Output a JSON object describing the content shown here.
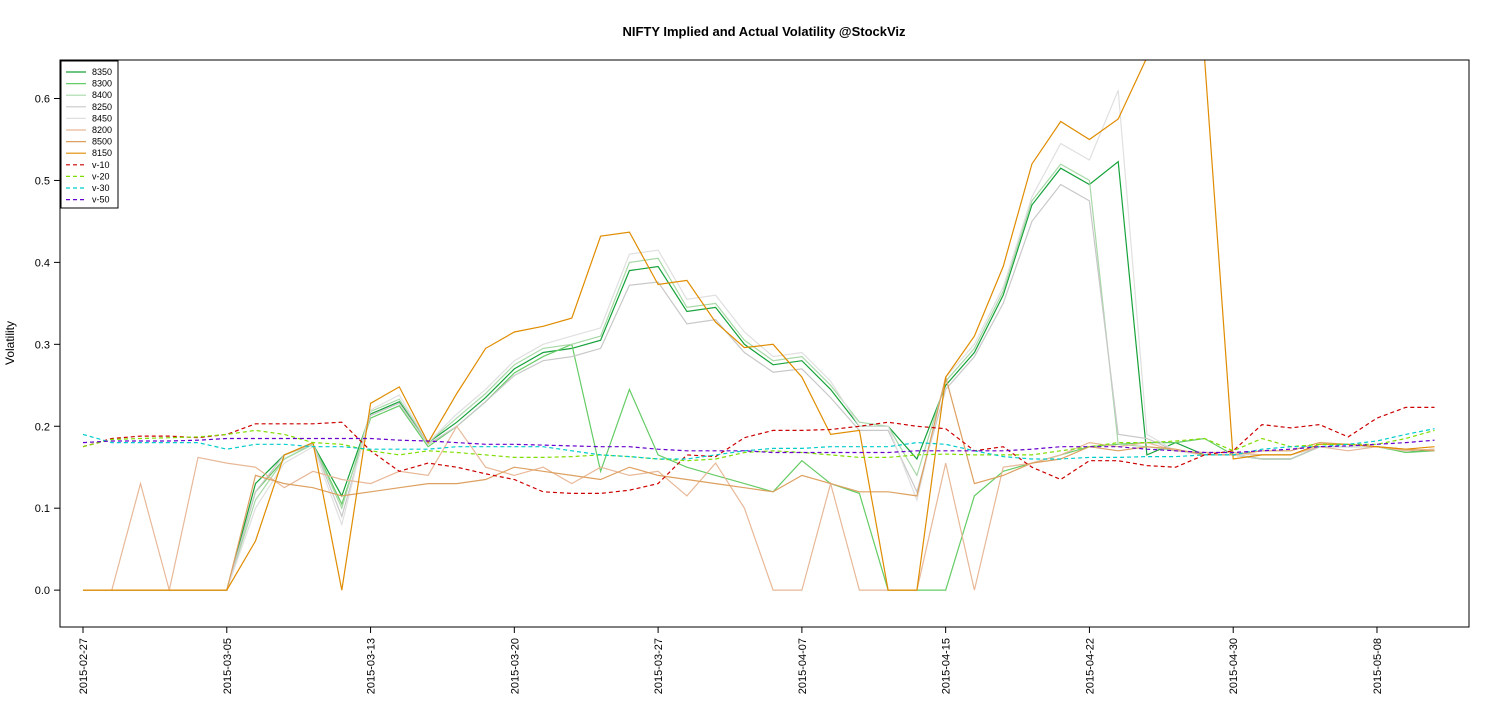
{
  "chart_data": {
    "type": "line",
    "title": "NIFTY Implied and Actual Volatility @StockViz",
    "xlabel": "",
    "ylabel": "Volatility",
    "ylim": [
      -0.045,
      0.647
    ],
    "yticks": [
      0.0,
      0.1,
      0.2,
      0.3,
      0.4,
      0.5,
      0.6
    ],
    "ytick_labels": [
      "0.0",
      "0.1",
      "0.2",
      "0.3",
      "0.4",
      "0.5",
      "0.6"
    ],
    "xlim": [
      -0.8,
      48.2
    ],
    "xticks": [
      0,
      5,
      10,
      15,
      20,
      25,
      30,
      35,
      40,
      45
    ],
    "xtick_labels": [
      "2015-02-27",
      "2015-03-05",
      "2015-03-13",
      "2015-03-20",
      "2015-03-27",
      "2015-04-07",
      "2015-04-15",
      "2015-04-22",
      "2015-04-30",
      "2015-05-08"
    ],
    "grid": false,
    "legend_position": "top-left",
    "x": [
      0,
      1,
      2,
      3,
      4,
      5,
      6,
      7,
      8,
      9,
      10,
      11,
      12,
      13,
      14,
      15,
      16,
      17,
      18,
      19,
      20,
      21,
      22,
      23,
      24,
      25,
      26,
      27,
      28,
      29,
      30,
      31,
      32,
      33,
      34,
      35,
      36,
      37,
      38,
      39,
      40,
      41,
      42,
      43,
      44,
      45,
      46,
      47
    ],
    "series": [
      {
        "name": "8350",
        "color": "#16a23a",
        "dash": "",
        "values": [
          0,
          0,
          0,
          0,
          0,
          0,
          0.13,
          0.165,
          0.178,
          0.115,
          0.215,
          0.23,
          0.18,
          0.205,
          0.235,
          0.27,
          0.29,
          0.295,
          0.305,
          0.39,
          0.395,
          0.34,
          0.345,
          0.3,
          0.275,
          0.28,
          0.245,
          0.2,
          0.2,
          0.16,
          0.25,
          0.29,
          0.36,
          0.47,
          0.515,
          0.495,
          0.523,
          0.165,
          0.18,
          0.165,
          0.165,
          0.16,
          0.16,
          0.175,
          0.175,
          0.175,
          0.17,
          0.17
        ]
      },
      {
        "name": "8300",
        "color": "#66cc66",
        "dash": "",
        "values": [
          0,
          0,
          0,
          0,
          0,
          0,
          0.12,
          0.16,
          0.178,
          0.105,
          0.21,
          0.225,
          0.175,
          0.2,
          0.23,
          0.265,
          0.285,
          0.3,
          0.145,
          0.245,
          0.165,
          0.15,
          0.14,
          0.13,
          0.12,
          0.158,
          0.13,
          0.118,
          0,
          0,
          0,
          0.115,
          0.145,
          0.155,
          0.165,
          0.175,
          0.178,
          0.18,
          0.18,
          0.185,
          0.165,
          0.16,
          0.16,
          0.175,
          0.175,
          0.175,
          0.168,
          0.17
        ]
      },
      {
        "name": "8400",
        "color": "#a8d8a8",
        "dash": "",
        "values": [
          0,
          0,
          0,
          0,
          0,
          0,
          0.11,
          0.16,
          0.178,
          0.1,
          0.218,
          0.233,
          0.18,
          0.21,
          0.24,
          0.275,
          0.295,
          0.3,
          0.31,
          0.4,
          0.405,
          0.345,
          0.35,
          0.305,
          0.28,
          0.285,
          0.25,
          0.205,
          0.2,
          0.14,
          0.255,
          0.295,
          0.365,
          0.475,
          0.52,
          0.5,
          0.178,
          0.175,
          0.17,
          0.165,
          0.165,
          0.165,
          0.165,
          0.175,
          0.175,
          0.175,
          0.17,
          0.172
        ]
      },
      {
        "name": "8250",
        "color": "#c8c8c8",
        "dash": "",
        "values": [
          0,
          0,
          0,
          0,
          0,
          0,
          0.12,
          0.165,
          0.178,
          0.09,
          0.213,
          0.228,
          0.178,
          0.2,
          0.23,
          0.262,
          0.28,
          0.285,
          0.295,
          0.372,
          0.376,
          0.325,
          0.33,
          0.29,
          0.266,
          0.27,
          0.235,
          0.195,
          0.195,
          0.12,
          0.245,
          0.285,
          0.35,
          0.45,
          0.495,
          0.475,
          0.19,
          0.185,
          0.17,
          0.165,
          0.165,
          0.16,
          0.16,
          0.175,
          0.175,
          0.175,
          0.17,
          0.172
        ]
      },
      {
        "name": "8450",
        "color": "#e0e0e0",
        "dash": "",
        "values": [
          0,
          0,
          0,
          0,
          0,
          0,
          0.1,
          0.155,
          0.175,
          0.08,
          0.22,
          0.238,
          0.18,
          0.215,
          0.245,
          0.28,
          0.3,
          0.31,
          0.32,
          0.41,
          0.415,
          0.355,
          0.36,
          0.315,
          0.285,
          0.29,
          0.255,
          0.2,
          0.2,
          0.11,
          0.26,
          0.3,
          0.37,
          0.48,
          0.545,
          0.525,
          0.61,
          0.19,
          0.17,
          0.165,
          0.165,
          0.165,
          0.165,
          0.175,
          0.175,
          0.175,
          0.17,
          0.172
        ]
      },
      {
        "name": "8200",
        "color": "#e8b898",
        "dash": "",
        "values": [
          0,
          0,
          0.13,
          0,
          0.162,
          0.155,
          0.15,
          0.125,
          0.145,
          0.135,
          0.13,
          0.145,
          0.14,
          0.2,
          0.15,
          0.14,
          0.15,
          0.13,
          0.15,
          0.14,
          0.145,
          0.115,
          0.155,
          0.1,
          0,
          0,
          0.13,
          0,
          0,
          0,
          0.155,
          0,
          0.15,
          0.155,
          0.165,
          0.18,
          0.175,
          0.18,
          0.17,
          0.168,
          0.168,
          0.165,
          0.165,
          0.175,
          0.17,
          0.175,
          0.17,
          0.172
        ]
      },
      {
        "name": "8500",
        "color": "#dda060",
        "dash": "",
        "values": [
          0,
          0,
          0,
          0,
          0,
          0,
          0.14,
          0.13,
          0.125,
          0.115,
          0.12,
          0.125,
          0.13,
          0.13,
          0.135,
          0.15,
          0.145,
          0.14,
          0.135,
          0.15,
          0.14,
          0.135,
          0.13,
          0.125,
          0.12,
          0.14,
          0.13,
          0.12,
          0.12,
          0.115,
          0.26,
          0.13,
          0.14,
          0.155,
          0.16,
          0.175,
          0.17,
          0.175,
          0.172,
          0.165,
          0.165,
          0.17,
          0.17,
          0.18,
          0.178,
          0.175,
          0.172,
          0.17
        ]
      },
      {
        "name": "8150",
        "color": "#e08c00",
        "dash": "",
        "values": [
          0,
          0,
          0,
          0,
          0,
          0,
          0.06,
          0.165,
          0.18,
          0,
          0.228,
          0.248,
          0.18,
          0.24,
          0.295,
          0.315,
          0.322,
          0.332,
          0.432,
          0.437,
          0.373,
          0.378,
          0.327,
          0.296,
          0.3,
          0.26,
          0.19,
          0.195,
          0,
          0,
          0.26,
          0.31,
          0.395,
          0.52,
          0.572,
          0.55,
          0.575,
          0.65,
          0.65,
          0.65,
          0.16,
          0.165,
          0.165,
          0.178,
          0.178,
          0.175,
          0.172,
          0.175
        ]
      },
      {
        "name": "v-10",
        "color": "#cc0000",
        "dash": "4,3",
        "values": [
          0.175,
          0.185,
          0.188,
          0.188,
          0.186,
          0.19,
          0.203,
          0.203,
          0.203,
          0.205,
          0.17,
          0.145,
          0.155,
          0.15,
          0.142,
          0.135,
          0.12,
          0.118,
          0.118,
          0.122,
          0.13,
          0.165,
          0.163,
          0.186,
          0.195,
          0.195,
          0.196,
          0.2,
          0.205,
          0.2,
          0.197,
          0.17,
          0.175,
          0.15,
          0.135,
          0.158,
          0.158,
          0.152,
          0.15,
          0.165,
          0.17,
          0.202,
          0.198,
          0.202,
          0.187,
          0.21,
          0.223,
          0.223
        ]
      },
      {
        "name": "v-20",
        "color": "#80dd00",
        "dash": "4,3",
        "values": [
          0.175,
          0.184,
          0.185,
          0.186,
          0.187,
          0.19,
          0.195,
          0.19,
          0.18,
          0.178,
          0.17,
          0.165,
          0.17,
          0.168,
          0.165,
          0.162,
          0.162,
          0.163,
          0.165,
          0.163,
          0.16,
          0.158,
          0.16,
          0.168,
          0.17,
          0.168,
          0.165,
          0.162,
          0.162,
          0.165,
          0.166,
          0.165,
          0.165,
          0.165,
          0.17,
          0.175,
          0.18,
          0.18,
          0.182,
          0.185,
          0.17,
          0.185,
          0.175,
          0.178,
          0.178,
          0.178,
          0.185,
          0.195
        ]
      },
      {
        "name": "v-30",
        "color": "#00cccc",
        "dash": "4,3",
        "values": [
          0.19,
          0.18,
          0.18,
          0.18,
          0.18,
          0.172,
          0.178,
          0.178,
          0.175,
          0.175,
          0.172,
          0.172,
          0.172,
          0.175,
          0.175,
          0.175,
          0.175,
          0.17,
          0.165,
          0.163,
          0.16,
          0.16,
          0.165,
          0.17,
          0.173,
          0.173,
          0.175,
          0.175,
          0.175,
          0.18,
          0.178,
          0.17,
          0.163,
          0.16,
          0.16,
          0.162,
          0.162,
          0.163,
          0.163,
          0.165,
          0.165,
          0.172,
          0.175,
          0.175,
          0.178,
          0.182,
          0.19,
          0.197
        ]
      },
      {
        "name": "v-50",
        "color": "#6600cc",
        "dash": "4,3",
        "values": [
          0.18,
          0.182,
          0.182,
          0.182,
          0.183,
          0.185,
          0.185,
          0.185,
          0.185,
          0.185,
          0.185,
          0.183,
          0.182,
          0.18,
          0.178,
          0.178,
          0.177,
          0.176,
          0.175,
          0.175,
          0.172,
          0.17,
          0.17,
          0.17,
          0.168,
          0.168,
          0.168,
          0.168,
          0.168,
          0.17,
          0.17,
          0.17,
          0.17,
          0.172,
          0.175,
          0.175,
          0.175,
          0.172,
          0.17,
          0.168,
          0.168,
          0.17,
          0.172,
          0.175,
          0.176,
          0.178,
          0.18,
          0.183
        ]
      }
    ]
  }
}
